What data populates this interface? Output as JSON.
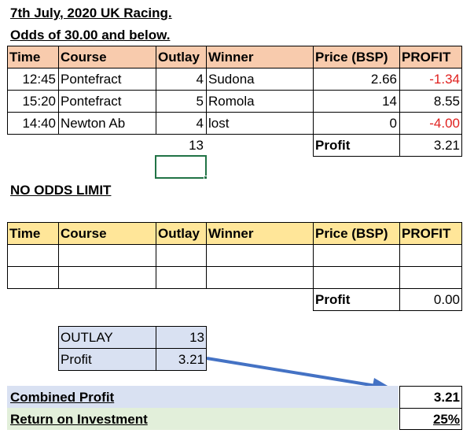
{
  "title": "7th July, 2020 UK Racing.",
  "subtitle": "Odds of 30.00 and below.",
  "headers": [
    "Time",
    "Course",
    "Outlay",
    "Winner",
    "Price (BSP)",
    "PROFIT"
  ],
  "table1": {
    "rows": [
      {
        "time": "12:45",
        "course": "Pontefract",
        "outlay": "4",
        "winner": "Sudona",
        "price": "2.66",
        "profit": "-1.34"
      },
      {
        "time": "15:20",
        "course": "Pontefract",
        "outlay": "5",
        "winner": "Romola",
        "price": "14",
        "profit": "8.55"
      },
      {
        "time": "14:40",
        "course": "Newton Ab",
        "outlay": "4",
        "winner": "lost",
        "price": "0",
        "profit": "-4.00"
      }
    ],
    "outlay_total": "13",
    "profit_label": "Profit",
    "profit_total": "3.21"
  },
  "section2_title": "NO ODDS LIMIT",
  "table2": {
    "profit_label": "Profit",
    "profit_total": "0.00"
  },
  "summary": {
    "outlay_label": "OUTLAY",
    "outlay_value": "13",
    "profit_label": "Profit",
    "profit_value": "3.21"
  },
  "combined": {
    "label": "Combined Profit",
    "value": "3.21",
    "roi_label": "Return on Investment",
    "roi_value": "25%"
  },
  "colors": {
    "header_orange": "#f8cbad",
    "header_yellow": "#ffe699",
    "blue_fill": "#d9e1f2",
    "green_fill": "#e2efda",
    "negative": "#e0201e",
    "arrow": "#4472c4",
    "selection": "#217346"
  }
}
